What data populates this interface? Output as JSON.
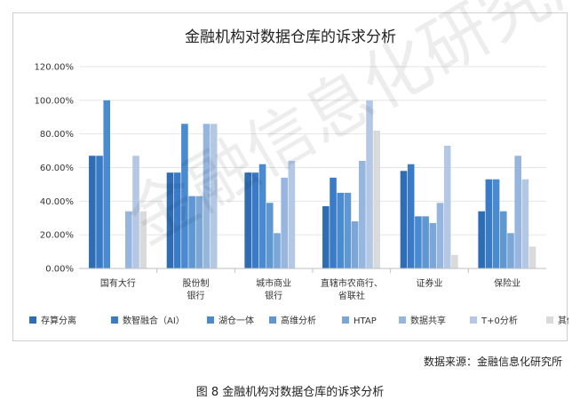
{
  "chart_data": {
    "type": "bar",
    "title": "金融机构对数据仓库的诉求分析",
    "categories": [
      "国有大行",
      "股份制\n银行",
      "城市商业\n银行",
      "直辖市农商行、\n省联社",
      "证券业",
      "保险业"
    ],
    "y_ticks": [
      "0.00%",
      "20.00%",
      "40.00%",
      "60.00%",
      "80.00%",
      "100.00%",
      "120.00%"
    ],
    "ylim": [
      0,
      120
    ],
    "legend_position": "bottom",
    "series": [
      {
        "name": "存算分离",
        "color": "#2e6db4",
        "values": [
          67,
          57,
          57,
          37,
          58,
          34
        ]
      },
      {
        "name": "数智融合（AI）",
        "color": "#3a7bc8",
        "values": [
          67,
          57,
          57,
          54,
          62,
          53
        ]
      },
      {
        "name": "湖仓一体",
        "color": "#4a8ad0",
        "values": [
          100,
          86,
          62,
          45,
          31,
          53
        ]
      },
      {
        "name": "高维分析",
        "color": "#5f97d3",
        "values": [
          0,
          43,
          39,
          45,
          31,
          34
        ]
      },
      {
        "name": "HTAP",
        "color": "#7aa6d8",
        "values": [
          0,
          43,
          21,
          28,
          27,
          21
        ]
      },
      {
        "name": "数据共享",
        "color": "#96b6df",
        "values": [
          34,
          86,
          54,
          64,
          39,
          67
        ]
      },
      {
        "name": "T+0分析",
        "color": "#b4c8e6",
        "values": [
          67,
          86,
          64,
          100,
          73,
          53
        ]
      },
      {
        "name": "其他",
        "color": "#d9dadc",
        "values": [
          34,
          0,
          0,
          82,
          8,
          13
        ]
      }
    ]
  },
  "footer": {
    "source": "数据来源：金融信息化研究所",
    "caption": "图 8  金融机构对数据仓库的诉求分析"
  },
  "watermark": "金融信息化研究所"
}
